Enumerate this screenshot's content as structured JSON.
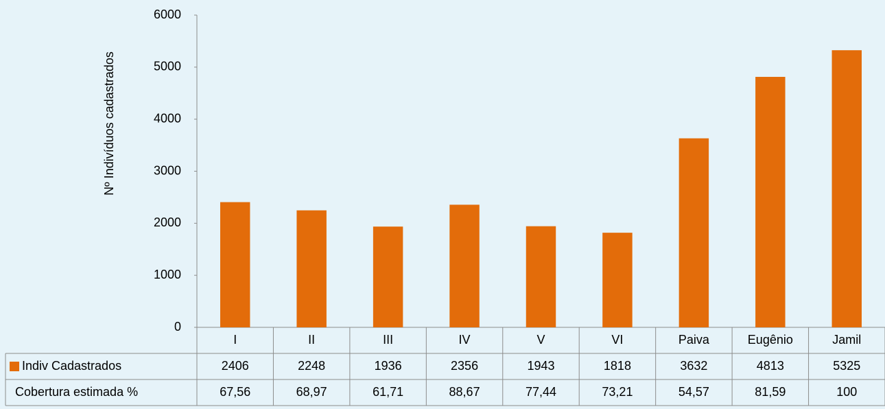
{
  "chart_data": {
    "type": "bar",
    "y_label": "Nº Indivíduos cadastrados",
    "categories": [
      "I",
      "II",
      "III",
      "IV",
      "V",
      "VI",
      "Paiva",
      "Eugênio",
      "Jamil"
    ],
    "series": [
      {
        "name": "Indiv Cadastrados",
        "color": "#e36c0a",
        "values": [
          2406,
          2248,
          1936,
          2356,
          1943,
          1818,
          3632,
          4813,
          5325
        ]
      },
      {
        "name": "Cobertura estimada %",
        "values": [
          67.56,
          68.97,
          61.71,
          88.67,
          77.44,
          73.21,
          54.57,
          81.59,
          100
        ],
        "value_labels": [
          "67,56",
          "68,97",
          "61,71",
          "88,67",
          "77,44",
          "73,21",
          "54,57",
          "81,59",
          "100"
        ]
      }
    ],
    "ylim": [
      0,
      6000
    ],
    "yticks": [
      0,
      1000,
      2000,
      3000,
      4000,
      5000,
      6000
    ],
    "grid": false
  }
}
